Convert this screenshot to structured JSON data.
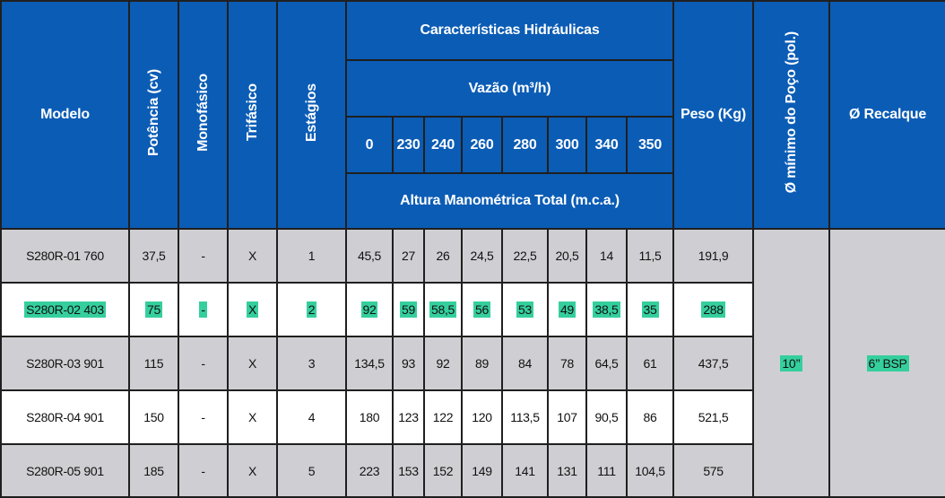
{
  "headers": {
    "modelo": "Modelo",
    "potencia": "Potência (cv)",
    "monofasico": "Monofásico",
    "trifasico": "Trifásico",
    "estagios": "Estágios",
    "caracteristicas": "Características Hidráulicas",
    "vazao": "Vazão (m³/h)",
    "flows": [
      "0",
      "230",
      "240",
      "260",
      "280",
      "300",
      "340",
      "350"
    ],
    "altura": "Altura Manométrica Total (m.c.a.)",
    "peso": "Peso (Kg)",
    "poco": "Ø mínimo do Poço (pol.)",
    "recalque": "Ø Recalque"
  },
  "rows": [
    {
      "modelo": "S280R-01 760",
      "potencia": "37,5",
      "mono": "-",
      "tri": "X",
      "estagios": "1",
      "h": [
        "45,5",
        "27",
        "26",
        "24,5",
        "22,5",
        "20,5",
        "14",
        "11,5"
      ],
      "peso": "191,9"
    },
    {
      "modelo": "S280R-02 403",
      "potencia": "75",
      "mono": "-",
      "tri": "X",
      "estagios": "2",
      "h": [
        "92",
        "59",
        "58,5",
        "56",
        "53",
        "49",
        "38,5",
        "35"
      ],
      "peso": "288"
    },
    {
      "modelo": "S280R-03 901",
      "potencia": "115",
      "mono": "-",
      "tri": "X",
      "estagios": "3",
      "h": [
        "134,5",
        "93",
        "92",
        "89",
        "84",
        "78",
        "64,5",
        "61"
      ],
      "peso": "437,5"
    },
    {
      "modelo": "S280R-04 901",
      "potencia": "150",
      "mono": "-",
      "tri": "X",
      "estagios": "4",
      "h": [
        "180",
        "123",
        "122",
        "120",
        "113,5",
        "107",
        "90,5",
        "86"
      ],
      "peso": "521,5"
    },
    {
      "modelo": "S280R-05 901",
      "potencia": "185",
      "mono": "-",
      "tri": "X",
      "estagios": "5",
      "h": [
        "223",
        "153",
        "152",
        "149",
        "141",
        "131",
        "111",
        "104,5"
      ],
      "peso": "575"
    }
  ],
  "poco_value": "10’’",
  "recalque_value": "6’’ BSP",
  "colors": {
    "header_bg": "#0b5cb5",
    "gray_row": "#cfcfd3",
    "highlight": "#35cf9d"
  }
}
